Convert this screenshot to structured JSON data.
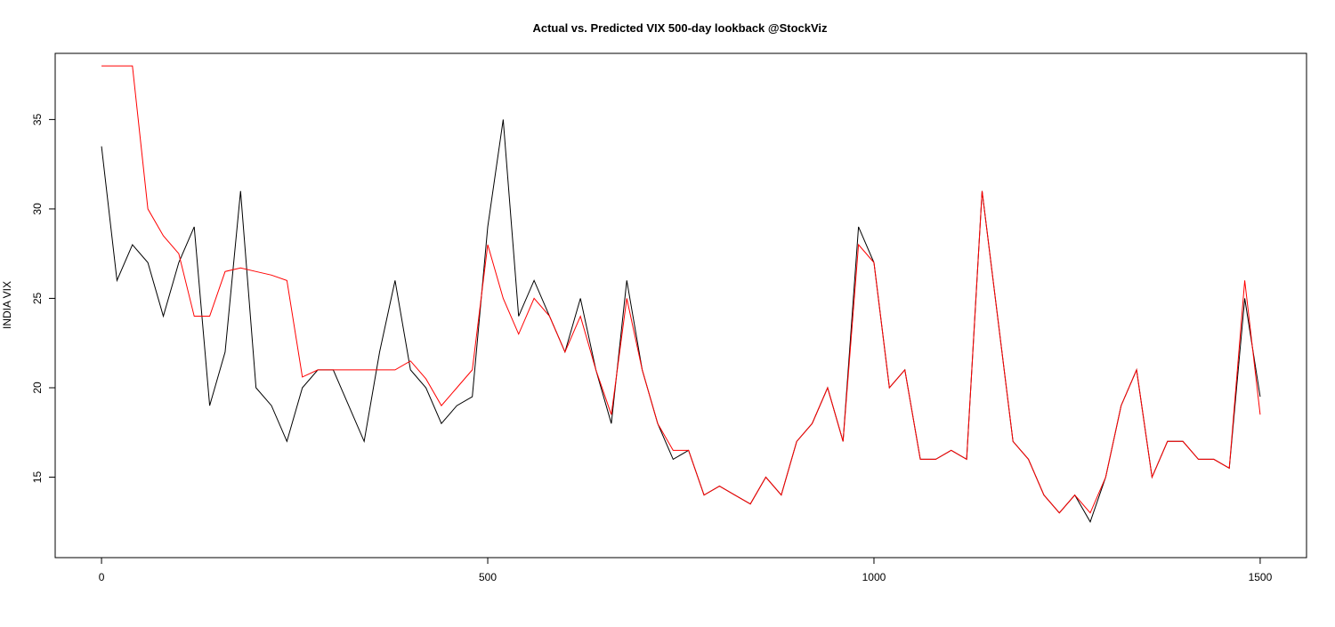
{
  "chart_data": {
    "type": "line",
    "title": "Actual vs. Predicted VIX 500-day lookback @StockViz",
    "y_label": "INDIA VIX",
    "x": [
      0,
      20,
      40,
      60,
      80,
      100,
      120,
      140,
      160,
      180,
      200,
      220,
      240,
      260,
      280,
      300,
      320,
      340,
      360,
      380,
      400,
      420,
      440,
      460,
      480,
      500,
      520,
      540,
      560,
      580,
      600,
      620,
      640,
      660,
      680,
      700,
      720,
      740,
      760,
      780,
      800,
      820,
      840,
      860,
      880,
      900,
      920,
      940,
      960,
      980,
      1000,
      1020,
      1040,
      1060,
      1080,
      1100,
      1120,
      1140,
      1160,
      1180,
      1200,
      1220,
      1240,
      1260,
      1280,
      1300,
      1320,
      1340,
      1360,
      1380,
      1400,
      1420,
      1440,
      1460,
      1480,
      1500
    ],
    "series": [
      {
        "color": "#000000",
        "values": [
          33.5,
          26,
          28,
          27,
          24,
          27,
          29,
          19,
          22,
          31,
          20,
          19,
          17,
          20,
          21,
          21,
          19,
          17,
          22,
          26,
          21,
          20,
          18,
          19,
          19.5,
          29,
          35,
          24,
          26,
          24,
          22,
          25,
          21,
          18,
          26,
          21,
          18,
          16,
          16.5,
          14,
          14.5,
          14,
          13.5,
          15,
          14,
          17,
          18,
          20,
          17,
          29,
          27,
          20,
          21,
          16,
          16,
          16.5,
          16,
          31,
          24,
          17,
          16,
          14,
          13,
          14,
          12.5,
          15,
          19,
          21,
          15,
          17,
          17,
          16,
          16,
          15.5,
          25,
          19.5
        ]
      },
      {
        "color": "#ff0000",
        "values": [
          38,
          38,
          38,
          30,
          28.5,
          27.5,
          24,
          24,
          26.5,
          26.7,
          26.5,
          26.3,
          26,
          20.6,
          21,
          21,
          21,
          21,
          21,
          21,
          21.5,
          20.5,
          19,
          20,
          21,
          28,
          25,
          23,
          25,
          24,
          22,
          24,
          21,
          18.5,
          25,
          21,
          18,
          16.5,
          16.5,
          14,
          14.5,
          14,
          13.5,
          15,
          14,
          17,
          18,
          20,
          17,
          28,
          27,
          20,
          21,
          16,
          16,
          16.5,
          16,
          31,
          24,
          17,
          16,
          14,
          13,
          14,
          13,
          15,
          19,
          21,
          15,
          17,
          17,
          16,
          16,
          15.5,
          26,
          18.5
        ]
      }
    ],
    "xlim": [
      -60,
      1560
    ],
    "ylim": [
      10.5,
      38.7
    ],
    "xticks": [
      0,
      500,
      1000,
      1500
    ],
    "yticks": [
      15,
      20,
      25,
      30,
      35
    ]
  }
}
